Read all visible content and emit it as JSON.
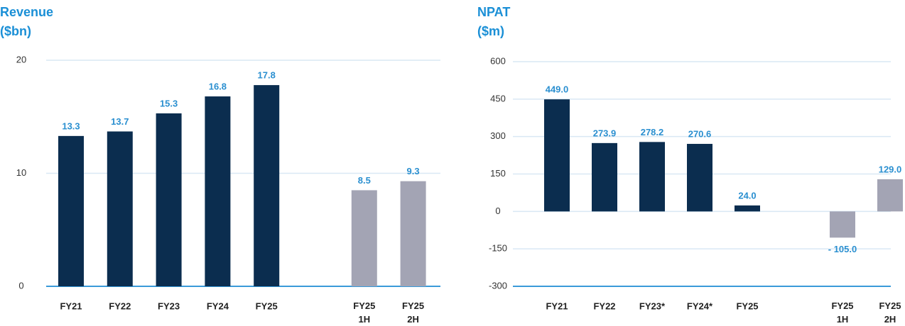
{
  "chart_data": [
    {
      "type": "bar",
      "title": [
        "Revenue",
        "($bn)"
      ],
      "categories": [
        "FY21",
        "FY22",
        "FY23",
        "FY24",
        "FY25",
        null,
        [
          "FY25",
          "1H"
        ],
        [
          "FY25",
          "2H"
        ]
      ],
      "values": [
        13.3,
        13.7,
        15.3,
        16.8,
        17.8,
        null,
        8.5,
        9.3
      ],
      "colors": [
        "#0b2d4f",
        "#0b2d4f",
        "#0b2d4f",
        "#0b2d4f",
        "#0b2d4f",
        null,
        "#a3a4b4",
        "#a3a4b4"
      ],
      "ylim": [
        0,
        20
      ],
      "yticks": [
        0,
        10,
        20
      ],
      "grid": true
    },
    {
      "type": "bar",
      "title": [
        "NPAT",
        "($m)"
      ],
      "categories": [
        "FY21",
        "FY22",
        "FY23*",
        "FY24*",
        "FY25",
        null,
        [
          "FY25",
          "1H"
        ],
        [
          "FY25",
          "2H"
        ]
      ],
      "values": [
        449,
        273.9,
        278.2,
        270.6,
        24,
        null,
        -105,
        129
      ],
      "value_labels": [
        "449.0",
        "273.9",
        "278.2",
        "270.6",
        "24.0",
        null,
        "- 105.0",
        "129.0"
      ],
      "colors": [
        "#0b2d4f",
        "#0b2d4f",
        "#0b2d4f",
        "#0b2d4f",
        "#0b2d4f",
        null,
        "#a3a4b4",
        "#a3a4b4"
      ],
      "ylim": [
        -300,
        600
      ],
      "yticks": [
        -300,
        -150,
        0,
        150,
        300,
        450,
        600
      ],
      "grid": true
    }
  ]
}
